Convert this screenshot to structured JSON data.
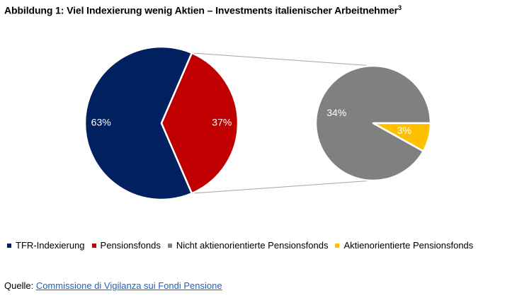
{
  "figure": {
    "title": "Abbildung 1: Viel Indexierung wenig Aktien – Investments italienischer Arbeitnehmer",
    "title_superscript": "3"
  },
  "colors": {
    "tfr": "#002060",
    "pension": "#c00000",
    "non_equity": "#808080",
    "equity": "#ffc000",
    "connector": "#a6a6a6",
    "link": "#1f5fbf"
  },
  "chart_data": {
    "type": "pie",
    "charts": [
      {
        "slices": [
          {
            "label": "TFR-Indexierung",
            "value": 63,
            "value_label": "63%",
            "color": "#002060"
          },
          {
            "label": "Pensionsfonds",
            "value": 37,
            "value_label": "37%",
            "color": "#c00000"
          }
        ]
      },
      {
        "slices": [
          {
            "label": "Nicht aktienorientierte Pensionsfonds",
            "value": 34,
            "value_label": "34%",
            "color": "#808080"
          },
          {
            "label": "Aktienorientierte Pensionsfonds",
            "value": 3,
            "value_label": "3%",
            "color": "#ffc000"
          }
        ]
      }
    ],
    "legend": [
      {
        "label": "TFR-Indexierung",
        "color": "#002060"
      },
      {
        "label": "Pensionsfonds",
        "color": "#c00000"
      },
      {
        "label": "Nicht aktienorientierte Pensionsfonds",
        "color": "#808080"
      },
      {
        "label": "Aktienorientierte Pensionsfonds",
        "color": "#ffc000"
      }
    ],
    "legend_position": "bottom"
  },
  "source": {
    "prefix": "Quelle: ",
    "link_text": "Commissione di Vigilanza sui Fondi Pensione"
  }
}
